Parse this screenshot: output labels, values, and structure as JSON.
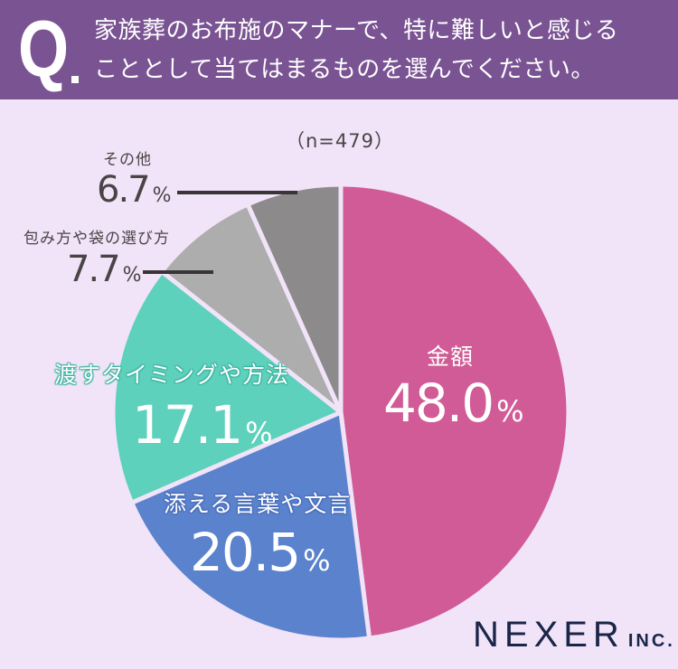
{
  "header": {
    "q_mark": "Q",
    "question_line1": "家族葬のお布施のマナーで、特に難しいと感じる",
    "question_line2": "こととして当てはまるものを選んでください。"
  },
  "sample_size": "（n=479）",
  "brand": {
    "name": "NEXER",
    "suffix": "INC."
  },
  "colors": {
    "header_bg": "#7a5393",
    "page_bg": "#f1e3f8",
    "slice_1": "#d15b96",
    "slice_2": "#5b82cd",
    "slice_3": "#5dd1bc",
    "slice_4": "#adadad",
    "slice_5": "#8c8a8b"
  },
  "labels": {
    "s1": {
      "cat": "金額",
      "num": "48.0",
      "pct": "%"
    },
    "s2": {
      "cat": "添える言葉や文言",
      "num": "20.5",
      "pct": "%"
    },
    "s3": {
      "cat": "渡すタイミングや方法",
      "num": "17.1",
      "pct": "%"
    },
    "s4": {
      "cat": "包み方や袋の選び方",
      "num": "7.7",
      "pct": "%"
    },
    "s5": {
      "cat": "その他",
      "num": "6.7",
      "pct": "%"
    }
  },
  "chart_data": {
    "type": "pie",
    "title": "家族葬のお布施のマナーで、特に難しいと感じることとして当てはまるものを選んでください。",
    "subtitle": "（n=479）",
    "unit": "%",
    "start_angle": "12 o'clock, clockwise",
    "categories": [
      "金額",
      "添える言葉や文言",
      "渡すタイミングや方法",
      "包み方や袋の選び方",
      "その他"
    ],
    "values": [
      48.0,
      20.5,
      17.1,
      7.7,
      6.7
    ],
    "colors": [
      "#d15b96",
      "#5b82cd",
      "#5dd1bc",
      "#adadad",
      "#8c8a8b"
    ]
  }
}
